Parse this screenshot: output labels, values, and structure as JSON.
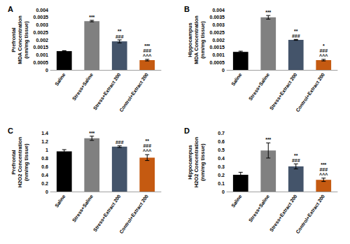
{
  "chart_data": [
    {
      "type": "bar",
      "title": "A",
      "subtitle": "Prefrontal",
      "ylabel": [
        "MDA Concentration",
        "(nm/mg tissue)"
      ],
      "categories": [
        "Saline",
        "Stress+Saline",
        "Stress+Extract 200",
        "Control+Extract 200"
      ],
      "values": [
        0.00125,
        0.00325,
        0.0019,
        0.00065
      ],
      "errors": [
        3e-05,
        5e-05,
        0.0001,
        5e-05
      ],
      "annotations": [
        null,
        [
          "***"
        ],
        [
          "**",
          "###"
        ],
        [
          "***",
          "###",
          "^^^"
        ]
      ],
      "colors": [
        "#000000",
        "#808080",
        "#44546a",
        "#c55a11"
      ],
      "ylim": [
        0,
        0.004
      ],
      "yticks": [
        0,
        0.0005,
        0.001,
        0.0015,
        0.002,
        0.0025,
        0.003,
        0.0035,
        0.004
      ],
      "grid": false
    },
    {
      "type": "bar",
      "title": "B",
      "subtitle": "Hippocampus",
      "ylabel": [
        "MDA Concentration",
        "(nm/mg tissue)"
      ],
      "categories": [
        "Saline",
        "Stress+Saline",
        "Stress+Extract 200",
        "Control+Extract 200"
      ],
      "values": [
        0.0012,
        0.0035,
        0.002,
        0.00065
      ],
      "errors": [
        5e-05,
        0.00012,
        3e-05,
        5e-05
      ],
      "annotations": [
        null,
        [
          "***"
        ],
        [
          "**",
          "###"
        ],
        [
          "*",
          "###",
          "^^^"
        ]
      ],
      "colors": [
        "#000000",
        "#808080",
        "#44546a",
        "#c55a11"
      ],
      "ylim": [
        0,
        0.004
      ],
      "yticks": [
        0,
        0.0005,
        0.001,
        0.0015,
        0.002,
        0.0025,
        0.003,
        0.0035,
        0.004
      ],
      "grid": false
    },
    {
      "type": "bar",
      "title": "C",
      "subtitle": "Prefrontal",
      "ylabel": [
        "H2O2 Concentration",
        "(nm/mg tissue)"
      ],
      "categories": [
        "Saline",
        "Stress+Saline",
        "Stress+Extract 200",
        "Control+Extract 200"
      ],
      "values": [
        0.96,
        1.27,
        1.07,
        0.81
      ],
      "errors": [
        0.04,
        0.05,
        0.02,
        0.07
      ],
      "annotations": [
        null,
        [
          "***"
        ],
        [
          "###"
        ],
        [
          "**",
          "###",
          "^^^"
        ]
      ],
      "colors": [
        "#000000",
        "#808080",
        "#44546a",
        "#c55a11"
      ],
      "ylim": [
        0,
        1.4
      ],
      "yticks": [
        0,
        0.2,
        0.4,
        0.6,
        0.8,
        1,
        1.2,
        1.4
      ],
      "grid": false
    },
    {
      "type": "bar",
      "title": "D",
      "subtitle": "Hippocampus",
      "ylabel": [
        "H2O2 Concentration",
        "(nm/mg tissue)"
      ],
      "categories": [
        "Saline",
        "Stress+Saline",
        "Stress+Extract 200",
        "Control+Extract 200"
      ],
      "values": [
        0.2,
        0.49,
        0.3,
        0.14
      ],
      "errors": [
        0.03,
        0.09,
        0.03,
        0.02
      ],
      "annotations": [
        null,
        [
          "***"
        ],
        [
          "**",
          "###"
        ],
        [
          "***",
          "###",
          "^^^"
        ]
      ],
      "colors": [
        "#000000",
        "#808080",
        "#44546a",
        "#c55a11"
      ],
      "ylim": [
        0,
        0.7
      ],
      "yticks": [
        0,
        0.1,
        0.2,
        0.3,
        0.4,
        0.5,
        0.6,
        0.7
      ],
      "grid": false
    }
  ]
}
